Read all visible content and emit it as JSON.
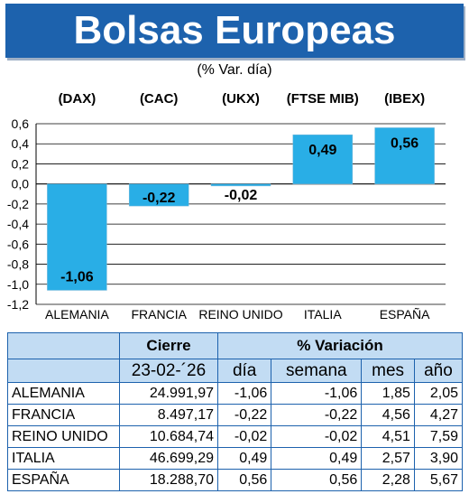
{
  "header": {
    "title": "Bolsas Europeas",
    "subtitle": "(% Var. día)"
  },
  "chart_data": {
    "type": "bar",
    "indices": [
      "(DAX)",
      "(CAC)",
      "(UKX)",
      "(FTSE MIB)",
      "(IBEX)"
    ],
    "categories": [
      "ALEMANIA",
      "FRANCIA",
      "REINO UNIDO",
      "ITALIA",
      "ESPAÑA"
    ],
    "values": [
      -1.06,
      -0.22,
      -0.02,
      0.49,
      0.56
    ],
    "value_labels": [
      "-1,06",
      "-0,22",
      "-0,02",
      "0,49",
      "0,56"
    ],
    "ylim": [
      -1.2,
      0.6
    ],
    "ytick_values": [
      0.6,
      0.4,
      0.2,
      0.0,
      -0.2,
      -0.4,
      -0.6,
      -0.8,
      -1.0,
      -1.2
    ],
    "ytick_labels": [
      "0,6",
      "0,4",
      "0,2",
      "0,0",
      "-0,2",
      "-0,4",
      "-0,6",
      "-0,8",
      "-1,0",
      "-1,2"
    ],
    "grid": true,
    "bar_color": "#29aee6"
  },
  "table": {
    "header_cierre": "Cierre",
    "header_variacion": "% Variación",
    "date": "23-02-´26",
    "cols": [
      "día",
      "semana",
      "mes",
      "año"
    ],
    "rows": [
      {
        "country": "ALEMANIA",
        "close": "24.991,97",
        "day": "-1,06",
        "week": "-1,06",
        "month": "1,85",
        "year": "2,05"
      },
      {
        "country": "FRANCIA",
        "close": "8.497,17",
        "day": "-0,22",
        "week": "-0,22",
        "month": "4,56",
        "year": "4,27"
      },
      {
        "country": "REINO UNIDO",
        "close": "10.684,74",
        "day": "-0,02",
        "week": "-0,02",
        "month": "4,51",
        "year": "7,59"
      },
      {
        "country": "ITALIA",
        "close": "46.699,29",
        "day": "0,49",
        "week": "0,49",
        "month": "2,57",
        "year": "3,90"
      },
      {
        "country": "ESPAÑA",
        "close": "18.288,70",
        "day": "0,56",
        "week": "0,56",
        "month": "2,28",
        "year": "5,67"
      }
    ],
    "header_bg": "#c2dcf3",
    "border_color": "#1d62ad"
  },
  "colors": {
    "title_bg": "#1d62ad",
    "title_text": "#ffffff"
  }
}
